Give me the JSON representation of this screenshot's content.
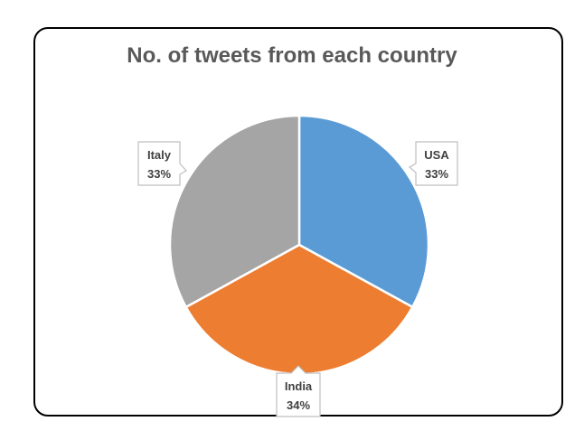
{
  "chart_data": {
    "type": "pie",
    "title": "No. of tweets from each country",
    "categories": [
      "USA",
      "India",
      "Italy"
    ],
    "values": [
      33,
      34,
      33
    ],
    "labels": [
      "33%",
      "34%",
      "33%"
    ],
    "colors": [
      "#5b9bd5",
      "#ed7d31",
      "#a5a5a5"
    ]
  }
}
